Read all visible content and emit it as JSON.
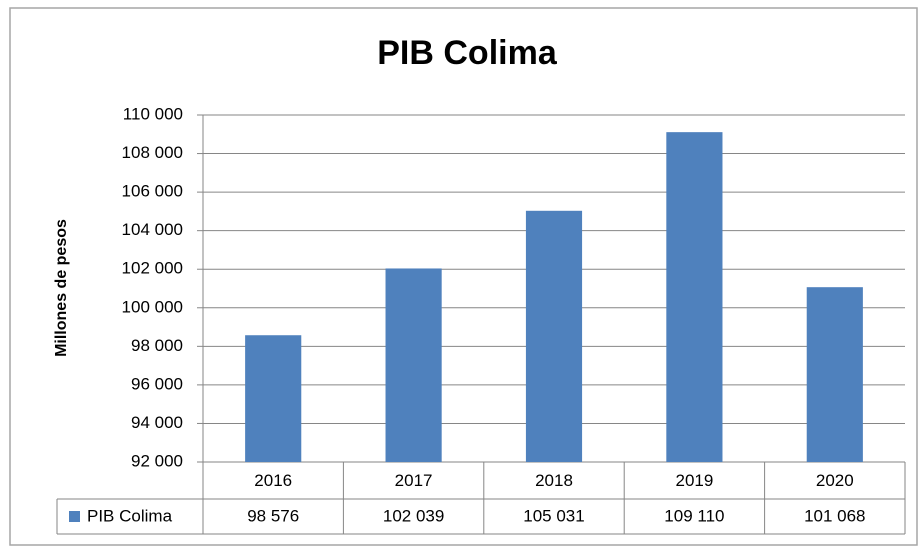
{
  "chart_data": {
    "type": "bar",
    "title": "PIB Colima",
    "y_label": "Millones de pesos",
    "categories": [
      "2016",
      "2017",
      "2018",
      "2019",
      "2020"
    ],
    "series": [
      {
        "name": "PIB Colima",
        "color": "#4f81bd",
        "values": [
          98576,
          102039,
          105031,
          109110,
          101068
        ],
        "value_labels": [
          "98 576",
          "102 039",
          "105 031",
          "109 110",
          "101 068"
        ]
      }
    ],
    "ylim": [
      92000,
      110000
    ],
    "yticks": [
      {
        "value": 92000,
        "label": "92 000"
      },
      {
        "value": 94000,
        "label": "94 000"
      },
      {
        "value": 96000,
        "label": "96 000"
      },
      {
        "value": 98000,
        "label": "98 000"
      },
      {
        "value": 100000,
        "label": "100 000"
      },
      {
        "value": 102000,
        "label": "102 000"
      },
      {
        "value": 104000,
        "label": "104 000"
      },
      {
        "value": 106000,
        "label": "106 000"
      },
      {
        "value": 108000,
        "label": "108 000"
      },
      {
        "value": 110000,
        "label": "110 000"
      }
    ],
    "grid": true,
    "data_table": true
  }
}
